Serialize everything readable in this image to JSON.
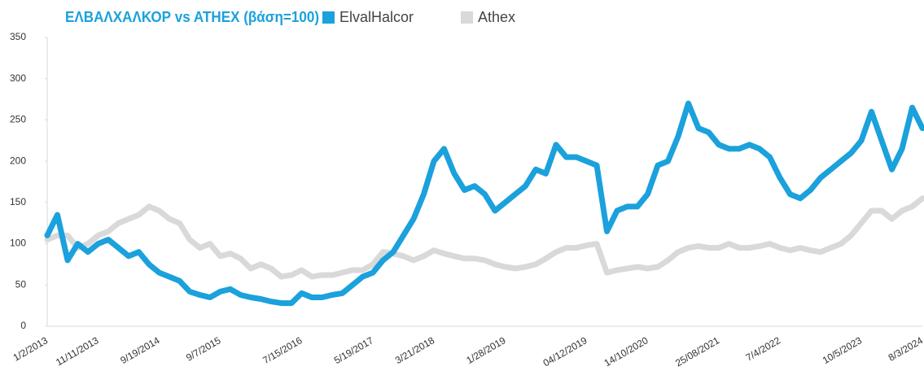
{
  "chart_data": {
    "type": "line",
    "title": "ΕΛΒΑΛΧΑΛΚΟΡ vs ATHEX (βάση=100)",
    "categories": [
      "1/2/2013",
      null,
      null,
      null,
      null,
      "11/11/2013",
      null,
      null,
      null,
      null,
      null,
      "9/19/2014",
      null,
      null,
      null,
      null,
      null,
      "9/7/2015",
      null,
      null,
      null,
      null,
      null,
      null,
      null,
      "7/15/2016",
      null,
      null,
      null,
      null,
      null,
      null,
      "5/19/2017",
      null,
      null,
      null,
      null,
      null,
      "3/21/2018",
      null,
      null,
      null,
      null,
      null,
      null,
      "1/28/2019",
      null,
      null,
      null,
      null,
      null,
      null,
      null,
      "04/12/2019",
      null,
      null,
      null,
      null,
      null,
      "14/10/2020",
      null,
      null,
      null,
      null,
      null,
      null,
      "25/08/2021",
      null,
      null,
      null,
      null,
      null,
      "7/4/2022",
      null,
      null,
      null,
      null,
      null,
      null,
      null,
      "10/5/2023",
      null,
      null,
      null,
      null,
      null,
      "8/3/2024"
    ],
    "series": [
      {
        "name": "ElvalHalcor",
        "color": "#1ba1dc",
        "values": [
          110,
          135,
          80,
          100,
          90,
          100,
          105,
          95,
          85,
          90,
          75,
          65,
          60,
          55,
          42,
          38,
          35,
          42,
          45,
          38,
          35,
          33,
          30,
          28,
          28,
          40,
          35,
          35,
          38,
          40,
          50,
          60,
          65,
          80,
          90,
          110,
          130,
          160,
          200,
          215,
          185,
          165,
          170,
          160,
          140,
          150,
          160,
          170,
          190,
          185,
          220,
          205,
          205,
          200,
          195,
          115,
          140,
          145,
          145,
          160,
          195,
          200,
          230,
          270,
          240,
          235,
          220,
          215,
          215,
          220,
          215,
          205,
          180,
          160,
          155,
          165,
          180,
          190,
          200,
          210,
          225,
          260,
          225,
          190,
          215,
          265,
          240
        ]
      },
      {
        "name": "Athex",
        "color": "#d9d9d9",
        "values": [
          105,
          110,
          110,
          95,
          100,
          110,
          115,
          125,
          130,
          135,
          145,
          140,
          130,
          125,
          105,
          95,
          100,
          85,
          88,
          82,
          70,
          75,
          70,
          60,
          62,
          68,
          60,
          62,
          62,
          65,
          68,
          68,
          75,
          90,
          88,
          85,
          80,
          85,
          92,
          88,
          85,
          82,
          82,
          80,
          75,
          72,
          70,
          72,
          75,
          82,
          90,
          95,
          95,
          98,
          100,
          65,
          68,
          70,
          72,
          70,
          72,
          80,
          90,
          95,
          97,
          95,
          95,
          100,
          95,
          95,
          97,
          100,
          95,
          92,
          95,
          92,
          90,
          95,
          100,
          110,
          125,
          140,
          140,
          130,
          140,
          145,
          155
        ]
      }
    ],
    "ylim": [
      0,
      350
    ],
    "yticks": [
      0,
      50,
      100,
      150,
      200,
      250,
      300,
      350
    ]
  }
}
